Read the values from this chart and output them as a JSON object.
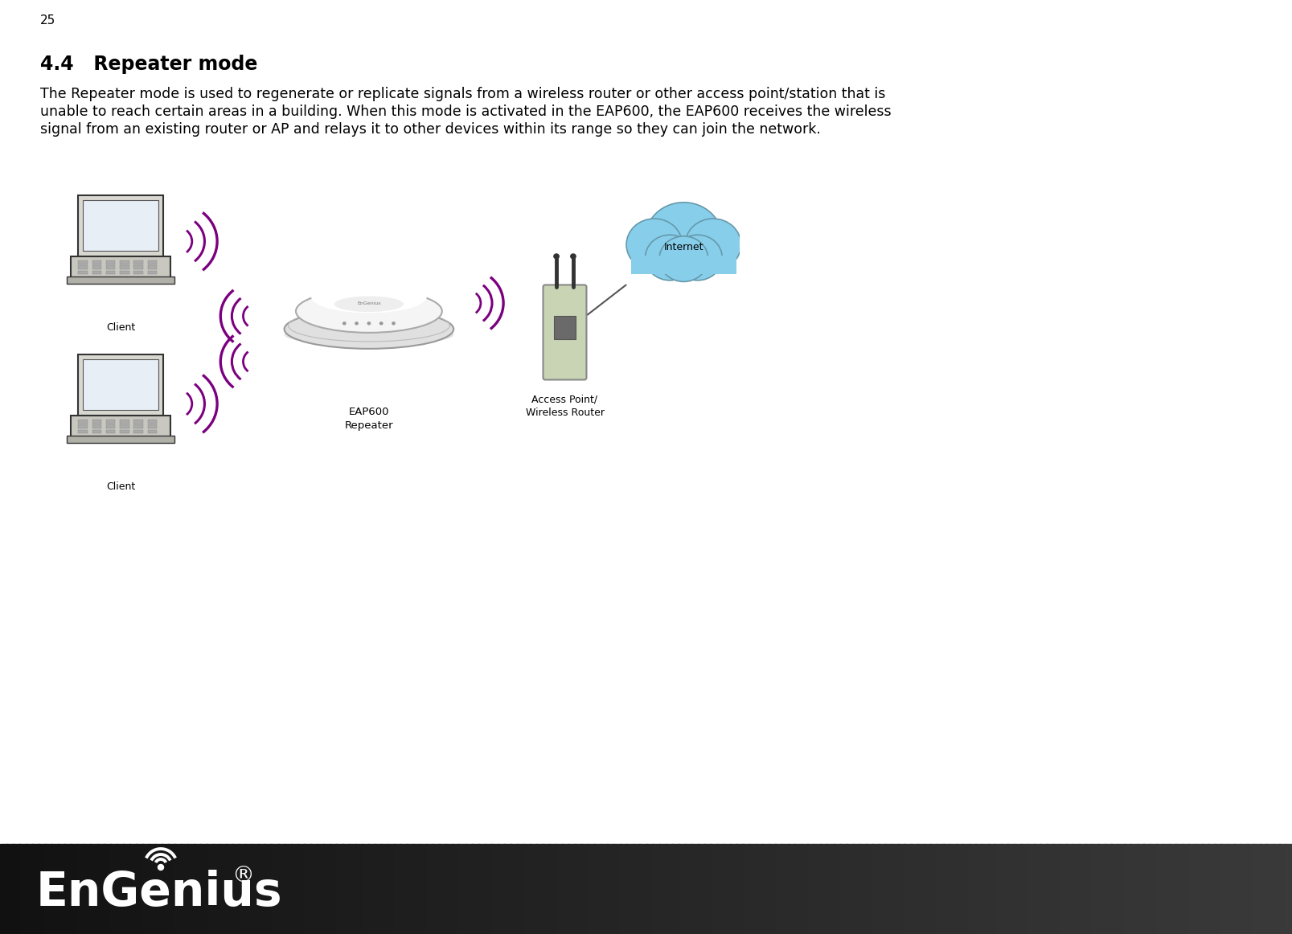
{
  "page_number": "25",
  "section_title": "4.4   Repeater mode",
  "body_line1": "The Repeater mode is used to regenerate or replicate signals from a wireless router or other access point/station that is",
  "body_line2": "unable to reach certain areas in a building. When this mode is activated in the EAP600, the EAP600 receives the wireless",
  "body_line3": "signal from an existing router or AP and relays it to other devices within its range so they can join the network.",
  "bg_color": "#ffffff",
  "page_num_color": "#000000",
  "title_color": "#000000",
  "body_color": "#000000",
  "title_fontsize": 17,
  "body_fontsize": 12.5,
  "page_num_fontsize": 11,
  "signal_color": "#7b0080",
  "internet_cloud_color": "#87CEEB",
  "ap_box_color": "#c8d4b8",
  "client_label": "Client",
  "eap_label": "EAP600\nRepeater",
  "ap_label": "Access Point/\nWireless Router",
  "internet_label": "Internet",
  "footer_text_color": "#ffffff",
  "footer_logo_size": 42
}
